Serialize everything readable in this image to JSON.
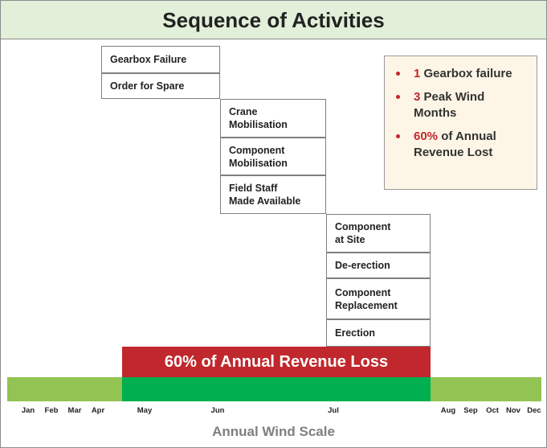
{
  "header": {
    "title": "Sequence of Activities"
  },
  "activities": [
    {
      "lines": [
        "Gearbox Failure"
      ]
    },
    {
      "lines": [
        "Order for Spare"
      ]
    },
    {
      "lines": [
        "Crane",
        "Mobilisation"
      ]
    },
    {
      "lines": [
        "Component",
        "Mobilisation"
      ]
    },
    {
      "lines": [
        "Field Staff",
        "Made Available"
      ]
    },
    {
      "lines": [
        "Component",
        "at Site"
      ]
    },
    {
      "lines": [
        "De-erection"
      ]
    },
    {
      "lines": [
        "Component",
        "Replacement"
      ]
    },
    {
      "lines": [
        "Erection"
      ]
    }
  ],
  "summary": [
    {
      "number": "1",
      "lines": [
        "Gearbox failure"
      ]
    },
    {
      "number": "3",
      "lines": [
        "Peak Wind",
        "Months"
      ]
    },
    {
      "number": "60%",
      "lines": [
        "of Annual",
        "Revenue Lost"
      ]
    }
  ],
  "loss_bar": {
    "label": "60% of Annual Revenue Loss"
  },
  "months": [
    "Jan",
    "Feb",
    "Mar",
    "Apr",
    "May",
    "Jun",
    "Jul",
    "Aug",
    "Sep",
    "Oct",
    "Nov",
    "Dec"
  ],
  "scale_label": "Annual Wind Scale"
}
